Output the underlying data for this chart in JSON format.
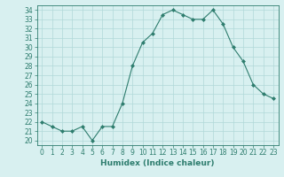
{
  "x": [
    0,
    1,
    2,
    3,
    4,
    5,
    6,
    7,
    8,
    9,
    10,
    11,
    12,
    13,
    14,
    15,
    16,
    17,
    18,
    19,
    20,
    21,
    22,
    23
  ],
  "y": [
    22,
    21.5,
    21,
    21,
    21.5,
    20,
    21.5,
    21.5,
    24,
    28,
    30.5,
    31.5,
    33.5,
    34,
    33.5,
    33,
    33,
    34,
    32.5,
    30,
    28.5,
    26,
    25,
    24.5
  ],
  "line_color": "#2e7d6e",
  "marker": "D",
  "marker_size": 2,
  "bg_color": "#d8f0f0",
  "grid_color": "#b0d8d8",
  "xlabel": "Humidex (Indice chaleur)",
  "ylim": [
    19.5,
    34.5
  ],
  "xlim": [
    -0.5,
    23.5
  ],
  "yticks": [
    20,
    21,
    22,
    23,
    24,
    25,
    26,
    27,
    28,
    29,
    30,
    31,
    32,
    33,
    34
  ],
  "xticks": [
    0,
    1,
    2,
    3,
    4,
    5,
    6,
    7,
    8,
    9,
    10,
    11,
    12,
    13,
    14,
    15,
    16,
    17,
    18,
    19,
    20,
    21,
    22,
    23
  ],
  "label_fontsize": 6.5,
  "tick_fontsize": 5.5
}
